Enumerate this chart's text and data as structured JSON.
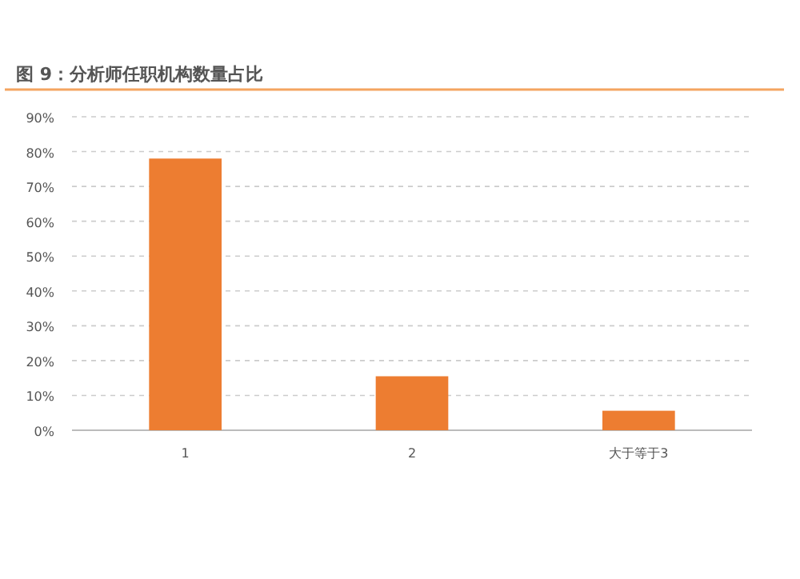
{
  "chart_data": {
    "type": "bar",
    "title": "图 9：分析师任职机构数量占比",
    "categories": [
      "1",
      "2",
      "大于等于3"
    ],
    "values": [
      78,
      15.5,
      5.6
    ],
    "color": "#ed7d31",
    "ylim": [
      0,
      90
    ],
    "yticks": [
      {
        "value": 0,
        "label": "0%"
      },
      {
        "value": 10,
        "label": "10%"
      },
      {
        "value": 20,
        "label": "20%"
      },
      {
        "value": 30,
        "label": "30%"
      },
      {
        "value": 40,
        "label": "40%"
      },
      {
        "value": 50,
        "label": "50%"
      },
      {
        "value": 60,
        "label": "60%"
      },
      {
        "value": 70,
        "label": "70%"
      },
      {
        "value": 80,
        "label": "80%"
      },
      {
        "value": 90,
        "label": "90%"
      }
    ],
    "grid": "y"
  }
}
